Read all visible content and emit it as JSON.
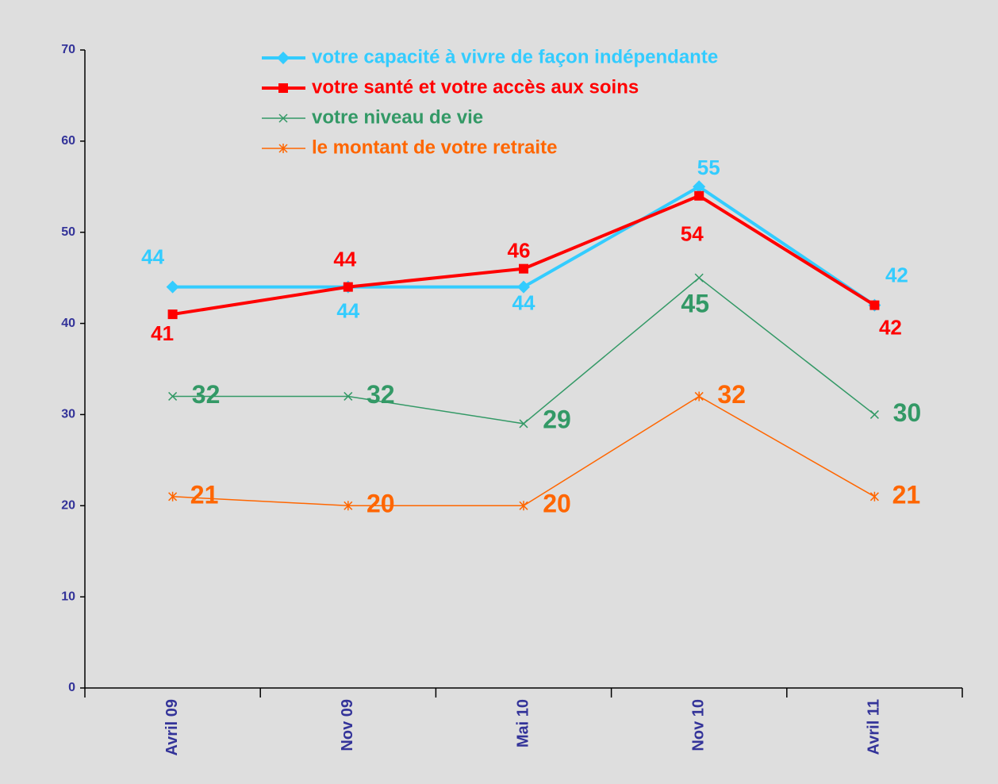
{
  "chart_data": {
    "type": "line",
    "categories": [
      "Avril 09",
      "Nov 09",
      "Mai 10",
      "Nov 10",
      "Avril 11"
    ],
    "series": [
      {
        "name": "votre capacité à vivre de façon indépendante",
        "color": "#33ccff",
        "marker": "diamond",
        "values": [
          44,
          44,
          44,
          55,
          42
        ]
      },
      {
        "name": "votre santé et votre accès aux soins",
        "color": "#ff0000",
        "marker": "square",
        "values": [
          41,
          44,
          46,
          54,
          42
        ]
      },
      {
        "name": "votre niveau de vie",
        "color": "#339966",
        "marker": "x",
        "values": [
          32,
          32,
          29,
          45,
          30
        ]
      },
      {
        "name": "le montant de votre retraite",
        "color": "#ff6600",
        "marker": "asterisk",
        "values": [
          21,
          20,
          20,
          32,
          21
        ]
      }
    ],
    "ylim": [
      0,
      70
    ],
    "yticks": [
      0,
      10,
      20,
      30,
      40,
      50,
      60,
      70
    ],
    "grid": false
  }
}
